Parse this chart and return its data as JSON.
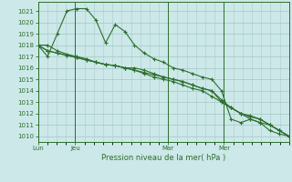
{
  "bg_color": "#cce8e8",
  "grid_color": "#aacccc",
  "line_color": "#2d6e2d",
  "title": "Pression niveau de la mer( hPa )",
  "ylim": [
    1009.5,
    1021.8
  ],
  "yticks": [
    1010,
    1011,
    1012,
    1013,
    1014,
    1015,
    1016,
    1017,
    1018,
    1019,
    1020,
    1021
  ],
  "xtick_labels": [
    "Lun",
    "Jeu",
    "Mar",
    "Mer"
  ],
  "xtick_positions": [
    0,
    4,
    14,
    20
  ],
  "xmax": 27,
  "series1": [
    1018,
    1017,
    1019,
    1021,
    1021.2,
    1021.2,
    1020.2,
    1018.2,
    1019.8,
    1019.2,
    1018,
    1017.3,
    1016.8,
    1016.5,
    1016,
    1015.8,
    1015.5,
    1015.2,
    1015,
    1014,
    1011.5,
    1011.2,
    1011.5,
    1011.2,
    1010.5,
    1010.2,
    1010
  ],
  "series2": [
    1018,
    1018,
    1017.5,
    1017.2,
    1017,
    1016.8,
    1016.5,
    1016.3,
    1016.2,
    1016,
    1016,
    1015.8,
    1015.5,
    1015.2,
    1015,
    1014.8,
    1014.5,
    1014.2,
    1014,
    1013,
    1012.5,
    1012,
    1011.8,
    1011.5,
    1011,
    1010.5,
    1010
  ],
  "series3": [
    1018,
    1017.5,
    1017.3,
    1017.1,
    1016.9,
    1016.7,
    1016.5,
    1016.3,
    1016.2,
    1016,
    1015.8,
    1015.6,
    1015.4,
    1015.2,
    1015,
    1014.8,
    1014.5,
    1014.2,
    1014,
    1013.2,
    1012.5,
    1012,
    1011.7,
    1011.5,
    1011,
    1010.5,
    1010
  ],
  "series4": [
    1018,
    1017.5,
    1017.3,
    1017.1,
    1016.9,
    1016.7,
    1016.5,
    1016.3,
    1016.2,
    1016,
    1015.8,
    1015.5,
    1015.2,
    1015,
    1014.8,
    1014.5,
    1014.2,
    1014,
    1013.5,
    1013,
    1012.5,
    1012,
    1011.5,
    1011.2,
    1011,
    1010.5,
    1010
  ]
}
